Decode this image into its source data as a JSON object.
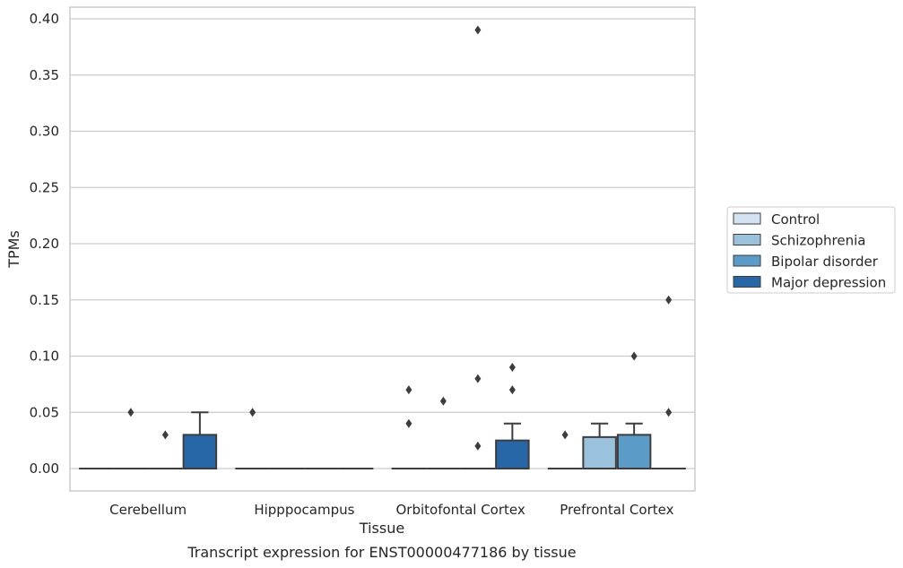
{
  "chart_data": {
    "type": "boxplot",
    "title": "Transcript expression for ENST00000477186 by tissue",
    "xlabel": "Tissue",
    "ylabel": "TPMs",
    "ylim": [
      -0.02,
      0.41
    ],
    "yticks": [
      "0.00",
      "0.05",
      "0.10",
      "0.15",
      "0.20",
      "0.25",
      "0.30",
      "0.35",
      "0.40"
    ],
    "ytick_values": [
      0,
      0.05,
      0.1,
      0.15,
      0.2,
      0.25,
      0.3,
      0.35,
      0.4
    ],
    "grid": "horizontal",
    "legend_position": "right",
    "categories": [
      "Cerebellum",
      "Hipppocampus",
      "Orbitofontal Cortex",
      "Prefrontal Cortex"
    ],
    "series": [
      {
        "name": "Control",
        "color": "#d4e3f1",
        "boxes": [
          {
            "q1": 0,
            "median": 0,
            "q3": 0,
            "whisker_low": 0,
            "whisker_high": 0,
            "outliers": []
          },
          {
            "q1": 0,
            "median": 0,
            "q3": 0,
            "whisker_low": 0,
            "whisker_high": 0,
            "outliers": [
              0.05
            ]
          },
          {
            "q1": 0,
            "median": 0,
            "q3": 0,
            "whisker_low": 0,
            "whisker_high": 0,
            "outliers": [
              0.04,
              0.07
            ]
          },
          {
            "q1": 0,
            "median": 0,
            "q3": 0,
            "whisker_low": 0,
            "whisker_high": 0,
            "outliers": [
              0.03
            ]
          }
        ]
      },
      {
        "name": "Schizophrenia",
        "color": "#9ac2dc",
        "boxes": [
          {
            "q1": 0,
            "median": 0,
            "q3": 0,
            "whisker_low": 0,
            "whisker_high": 0,
            "outliers": [
              0.05
            ]
          },
          {
            "q1": 0,
            "median": 0,
            "q3": 0,
            "whisker_low": 0,
            "whisker_high": 0,
            "outliers": []
          },
          {
            "q1": 0,
            "median": 0,
            "q3": 0,
            "whisker_low": 0,
            "whisker_high": 0,
            "outliers": [
              0.06
            ]
          },
          {
            "q1": 0,
            "median": 0,
            "q3": 0.028,
            "whisker_low": 0,
            "whisker_high": 0.04,
            "outliers": []
          }
        ]
      },
      {
        "name": "Bipolar disorder",
        "color": "#5a9bc8",
        "boxes": [
          {
            "q1": 0,
            "median": 0,
            "q3": 0,
            "whisker_low": 0,
            "whisker_high": 0,
            "outliers": [
              0.03
            ]
          },
          {
            "q1": 0,
            "median": 0,
            "q3": 0,
            "whisker_low": 0,
            "whisker_high": 0,
            "outliers": []
          },
          {
            "q1": 0,
            "median": 0,
            "q3": 0,
            "whisker_low": 0,
            "whisker_high": 0,
            "outliers": [
              0.02,
              0.08,
              0.39
            ]
          },
          {
            "q1": 0,
            "median": 0,
            "q3": 0.03,
            "whisker_low": 0,
            "whisker_high": 0.04,
            "outliers": [
              0.1
            ]
          }
        ]
      },
      {
        "name": "Major depression",
        "color": "#2767a8",
        "boxes": [
          {
            "q1": 0,
            "median": 0,
            "q3": 0.03,
            "whisker_low": 0,
            "whisker_high": 0.05,
            "outliers": []
          },
          {
            "q1": 0,
            "median": 0,
            "q3": 0,
            "whisker_low": 0,
            "whisker_high": 0,
            "outliers": []
          },
          {
            "q1": 0,
            "median": 0,
            "q3": 0.025,
            "whisker_low": 0,
            "whisker_high": 0.04,
            "outliers": [
              0.07,
              0.09
            ]
          },
          {
            "q1": 0,
            "median": 0,
            "q3": 0,
            "whisker_low": 0,
            "whisker_high": 0,
            "outliers": [
              0.05,
              0.15
            ]
          }
        ]
      }
    ]
  }
}
